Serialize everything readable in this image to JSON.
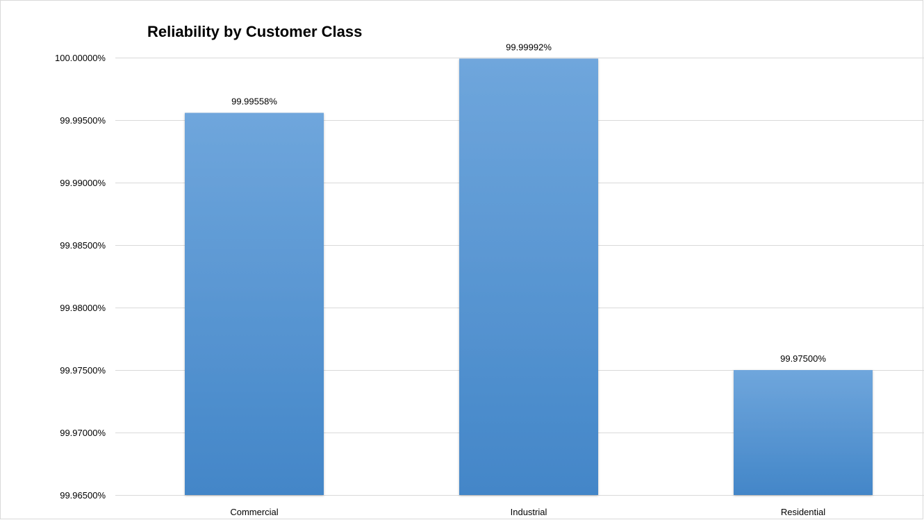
{
  "chart_data": {
    "type": "bar",
    "title": "Reliability by Customer Class",
    "xlabel": "",
    "ylabel": "",
    "categories": [
      "Commercial",
      "Industrial",
      "Residential"
    ],
    "values": [
      99.99558,
      99.99992,
      99.975
    ],
    "data_labels": [
      "99.99558%",
      "99.99992%",
      "99.97500%"
    ],
    "ylim": [
      99.965,
      100.0
    ],
    "y_ticks": [
      99.965,
      99.97,
      99.975,
      99.98,
      99.985,
      99.99,
      99.995,
      100.0
    ],
    "y_tick_labels": [
      "99.96500%",
      "99.97000%",
      "99.97500%",
      "99.98000%",
      "99.98500%",
      "99.99000%",
      "99.99500%",
      "100.00000%"
    ],
    "grid": true,
    "legend": "none",
    "bar_color_top": "#6fa6dc",
    "bar_color_bottom": "#4386c8"
  }
}
